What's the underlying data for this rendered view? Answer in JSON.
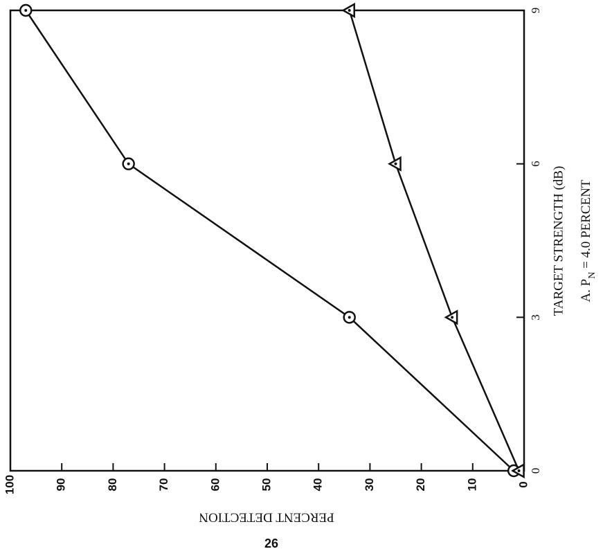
{
  "chart_data": {
    "type": "line",
    "x_label": "TARGET STRENGTH (dB)",
    "y_label": "PERCENT DETECTION",
    "caption": {
      "prefix": "A.  P",
      "subscript": "N",
      "suffix": " = 4.0 PERCENT"
    },
    "page_number": "26",
    "x": [
      0,
      3,
      6,
      9
    ],
    "xlim": [
      0,
      9
    ],
    "xticks": [
      0,
      3,
      6,
      9
    ],
    "ylim": [
      0,
      100
    ],
    "yticks": [
      0,
      10,
      20,
      30,
      40,
      50,
      60,
      70,
      80,
      90,
      100
    ],
    "series": [
      {
        "color": "#111111",
        "marker": "circle",
        "values": [
          2,
          34,
          77,
          97
        ]
      },
      {
        "color": "#111111",
        "marker": "triangle",
        "values": [
          1,
          14,
          25,
          34
        ]
      }
    ]
  }
}
